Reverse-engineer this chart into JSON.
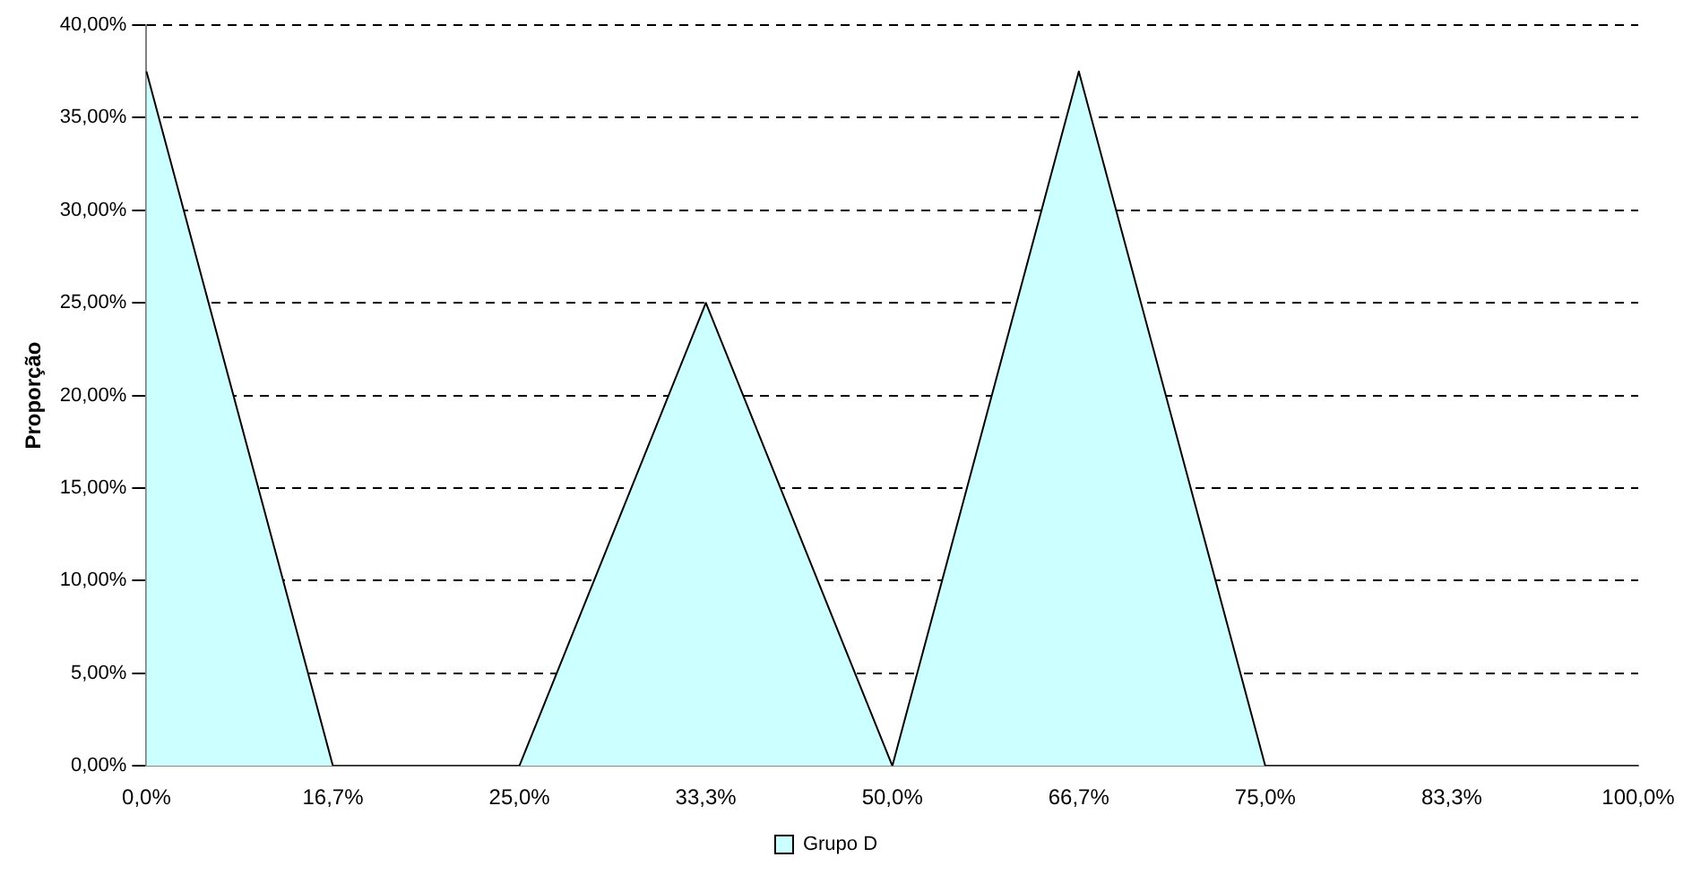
{
  "chart_data": {
    "type": "area",
    "ylabel": "Proporção",
    "categories": [
      "0,0%",
      "16,7%",
      "25,0%",
      "33,3%",
      "50,0%",
      "66,7%",
      "75,0%",
      "83,3%",
      "100,0%"
    ],
    "series": [
      {
        "name": "Grupo D",
        "color": "#ccffff",
        "values": [
          37.5,
          0,
          0,
          25,
          0,
          37.5,
          0,
          0,
          0
        ]
      }
    ],
    "ylim": [
      0,
      40
    ],
    "yticks": [
      {
        "value": 0,
        "label": "0,00%"
      },
      {
        "value": 5,
        "label": "5,00%"
      },
      {
        "value": 10,
        "label": "10,00%"
      },
      {
        "value": 15,
        "label": "15,00%"
      },
      {
        "value": 20,
        "label": "20,00%"
      },
      {
        "value": 25,
        "label": "25,00%"
      },
      {
        "value": 30,
        "label": "30,00%"
      },
      {
        "value": 35,
        "label": "35,00%"
      },
      {
        "value": 40,
        "label": "40,00%"
      }
    ],
    "grid": "y",
    "legend": "bottom",
    "marker": "none",
    "line_style": "solid"
  }
}
